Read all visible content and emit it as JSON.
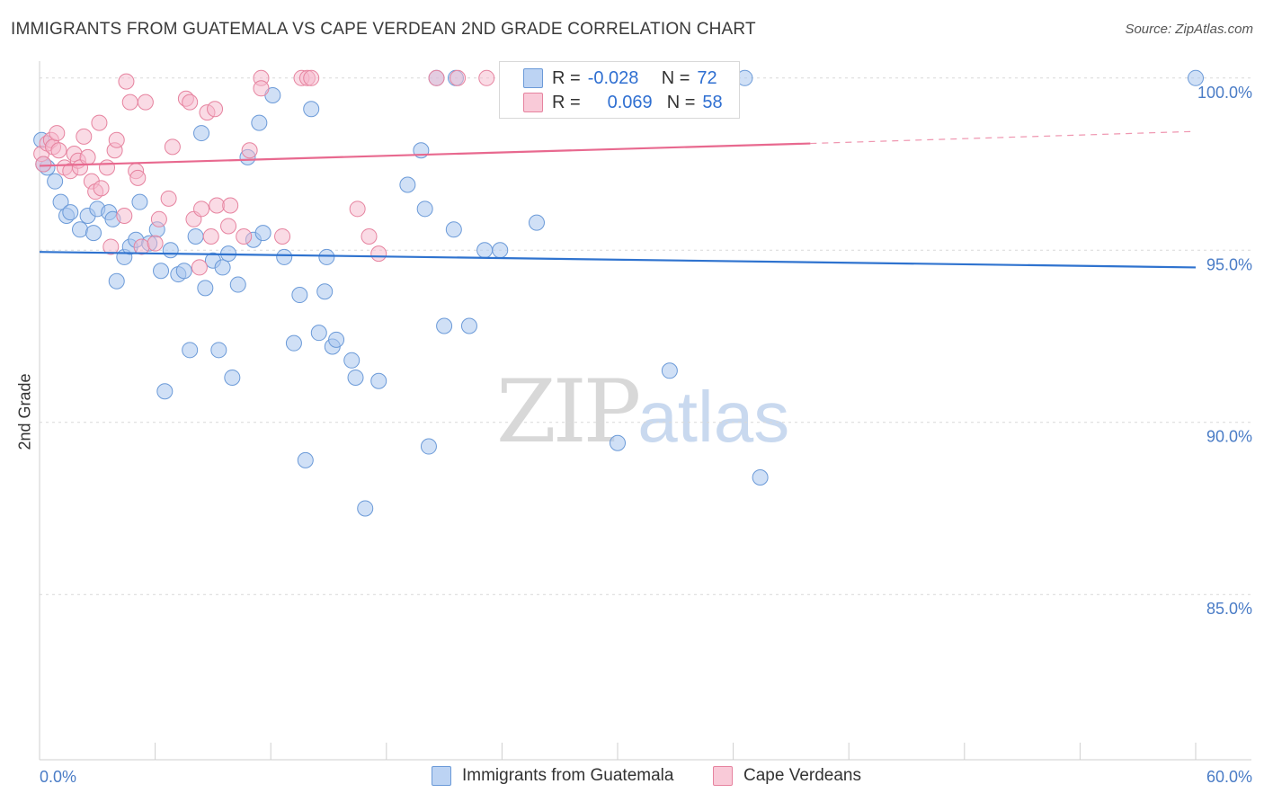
{
  "header": {
    "title": "IMMIGRANTS FROM GUATEMALA VS CAPE VERDEAN 2ND GRADE CORRELATION CHART",
    "source": "Source: ZipAtlas.com"
  },
  "watermark": {
    "zip": "ZIP",
    "atlas": "atlas"
  },
  "legend_top": {
    "rows": [
      {
        "r_label": "R =",
        "r_value": "-0.028",
        "n_label": "N =",
        "n_value": "72"
      },
      {
        "r_label": "R =",
        "r_value": "0.069",
        "n_label": "N =",
        "n_value": "58"
      }
    ]
  },
  "legend_bottom": {
    "items": [
      {
        "label": "Immigrants from Guatemala"
      },
      {
        "label": "Cape Verdeans"
      }
    ]
  },
  "colors": {
    "blue_fill": "#a9c6ef",
    "blue_stroke": "#6b9ad8",
    "blue_line": "#2f73cf",
    "pink_fill": "#f6b8cc",
    "pink_stroke": "#e6839f",
    "pink_line": "#e8698f",
    "grid": "#d9d9d9",
    "tick_text": "#4a7cc6"
  },
  "chart_data": {
    "type": "scatter",
    "title": "IMMIGRANTS FROM GUATEMALA VS CAPE VERDEAN 2ND GRADE CORRELATION CHART",
    "xlabel": "",
    "ylabel": "2nd Grade",
    "xlim": [
      0,
      60
    ],
    "ylim": [
      80.2,
      100.7
    ],
    "x_tick_labels": [
      "0.0%",
      "60.0%"
    ],
    "y_ticks": [
      85,
      90,
      95,
      100
    ],
    "y_tick_labels": [
      "85.0%",
      "90.0%",
      "95.0%",
      "100.0%"
    ],
    "grid": true,
    "legend_placement": "bottom",
    "series": [
      {
        "name": "Immigrants from Guatemala",
        "color": "#a9c6ef",
        "r": -0.028,
        "n": 72,
        "trend": {
          "x": [
            0,
            60
          ],
          "y": [
            94.95,
            94.5
          ]
        },
        "points": [
          [
            0.1,
            98.2
          ],
          [
            0.4,
            97.4
          ],
          [
            0.8,
            97.0
          ],
          [
            1.1,
            96.4
          ],
          [
            1.4,
            96.0
          ],
          [
            1.6,
            96.1
          ],
          [
            2.1,
            95.6
          ],
          [
            2.5,
            96.0
          ],
          [
            2.8,
            95.5
          ],
          [
            3.0,
            96.2
          ],
          [
            3.6,
            96.1
          ],
          [
            3.8,
            95.9
          ],
          [
            4.0,
            94.1
          ],
          [
            4.4,
            94.8
          ],
          [
            4.7,
            95.1
          ],
          [
            5.0,
            95.3
          ],
          [
            5.2,
            96.4
          ],
          [
            5.7,
            95.2
          ],
          [
            6.1,
            95.6
          ],
          [
            6.3,
            94.4
          ],
          [
            6.5,
            90.9
          ],
          [
            6.8,
            95.0
          ],
          [
            7.2,
            94.3
          ],
          [
            7.5,
            94.4
          ],
          [
            7.8,
            92.1
          ],
          [
            8.1,
            95.4
          ],
          [
            8.4,
            98.4
          ],
          [
            8.6,
            93.9
          ],
          [
            9.0,
            94.7
          ],
          [
            9.3,
            92.1
          ],
          [
            9.5,
            94.5
          ],
          [
            9.8,
            94.9
          ],
          [
            10.0,
            91.3
          ],
          [
            10.3,
            94.0
          ],
          [
            10.8,
            97.7
          ],
          [
            11.1,
            95.3
          ],
          [
            11.4,
            98.7
          ],
          [
            11.6,
            95.5
          ],
          [
            12.1,
            99.5
          ],
          [
            12.7,
            94.8
          ],
          [
            13.2,
            92.3
          ],
          [
            13.5,
            93.7
          ],
          [
            13.8,
            88.9
          ],
          [
            14.1,
            99.1
          ],
          [
            14.5,
            92.6
          ],
          [
            14.8,
            93.8
          ],
          [
            14.9,
            94.8
          ],
          [
            15.2,
            92.2
          ],
          [
            15.4,
            92.4
          ],
          [
            16.2,
            91.8
          ],
          [
            16.4,
            91.3
          ],
          [
            16.9,
            87.5
          ],
          [
            17.6,
            91.2
          ],
          [
            19.1,
            96.9
          ],
          [
            19.8,
            97.9
          ],
          [
            20.0,
            96.2
          ],
          [
            20.2,
            89.3
          ],
          [
            20.6,
            100.0
          ],
          [
            21.0,
            92.8
          ],
          [
            21.5,
            95.6
          ],
          [
            21.6,
            100.0
          ],
          [
            22.3,
            92.8
          ],
          [
            23.1,
            95.0
          ],
          [
            23.9,
            95.0
          ],
          [
            25.8,
            95.8
          ],
          [
            30.0,
            89.4
          ],
          [
            32.7,
            91.5
          ],
          [
            33.8,
            100.0
          ],
          [
            36.6,
            100.0
          ],
          [
            37.4,
            88.4
          ],
          [
            60.0,
            100.0
          ],
          [
            0.2,
            97.5
          ]
        ]
      },
      {
        "name": "Cape Verdeans",
        "color": "#f6b8cc",
        "r": 0.069,
        "n": 58,
        "trend": {
          "x": [
            0,
            40
          ],
          "y": [
            97.45,
            98.1
          ]
        },
        "trend_dashed": {
          "x": [
            40,
            60
          ],
          "y": [
            98.1,
            98.45
          ]
        },
        "points": [
          [
            0.1,
            97.8
          ],
          [
            0.2,
            97.5
          ],
          [
            0.4,
            98.1
          ],
          [
            0.6,
            98.2
          ],
          [
            0.7,
            98.0
          ],
          [
            0.9,
            98.4
          ],
          [
            1.0,
            97.9
          ],
          [
            1.3,
            97.4
          ],
          [
            1.6,
            97.3
          ],
          [
            1.8,
            97.8
          ],
          [
            2.0,
            97.6
          ],
          [
            2.1,
            97.4
          ],
          [
            2.3,
            98.3
          ],
          [
            2.5,
            97.7
          ],
          [
            2.7,
            97.0
          ],
          [
            2.9,
            96.7
          ],
          [
            3.1,
            98.7
          ],
          [
            3.2,
            96.8
          ],
          [
            3.5,
            97.4
          ],
          [
            3.7,
            95.1
          ],
          [
            3.9,
            97.9
          ],
          [
            4.0,
            98.2
          ],
          [
            4.4,
            96.0
          ],
          [
            4.5,
            99.9
          ],
          [
            4.7,
            99.3
          ],
          [
            5.0,
            97.3
          ],
          [
            5.1,
            97.1
          ],
          [
            5.3,
            95.1
          ],
          [
            5.5,
            99.3
          ],
          [
            6.0,
            95.2
          ],
          [
            6.2,
            95.9
          ],
          [
            6.7,
            96.5
          ],
          [
            6.9,
            98.0
          ],
          [
            7.6,
            99.4
          ],
          [
            7.8,
            99.3
          ],
          [
            8.0,
            95.9
          ],
          [
            8.3,
            94.5
          ],
          [
            8.4,
            96.2
          ],
          [
            8.7,
            99.0
          ],
          [
            8.9,
            95.4
          ],
          [
            9.1,
            99.1
          ],
          [
            9.2,
            96.3
          ],
          [
            9.8,
            95.7
          ],
          [
            9.9,
            96.3
          ],
          [
            10.6,
            95.4
          ],
          [
            10.9,
            97.9
          ],
          [
            11.5,
            100.0
          ],
          [
            11.5,
            99.7
          ],
          [
            12.6,
            95.4
          ],
          [
            13.6,
            100.0
          ],
          [
            13.9,
            100.0
          ],
          [
            14.1,
            100.0
          ],
          [
            16.5,
            96.2
          ],
          [
            17.1,
            95.4
          ],
          [
            17.6,
            94.9
          ],
          [
            20.6,
            100.0
          ],
          [
            21.7,
            100.0
          ],
          [
            23.2,
            100.0
          ]
        ]
      }
    ]
  }
}
